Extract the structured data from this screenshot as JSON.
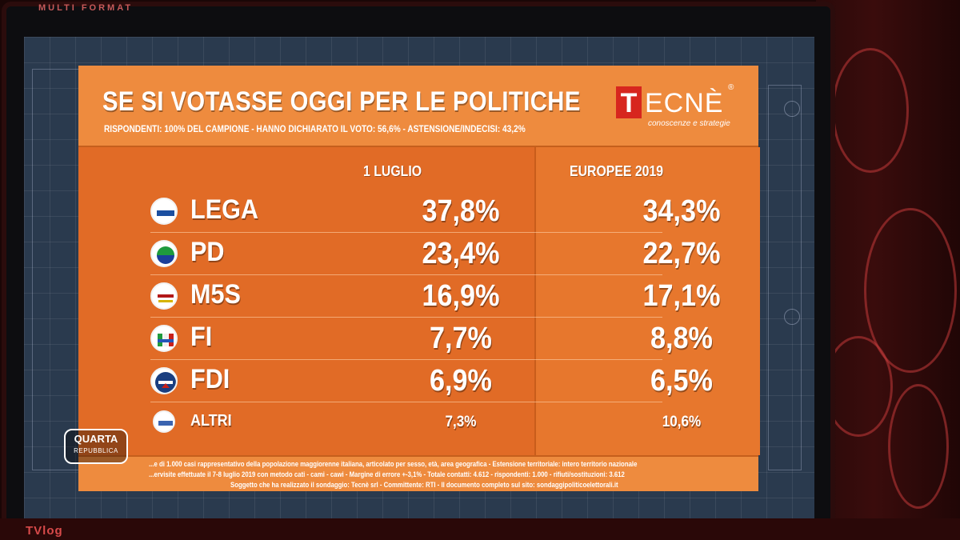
{
  "monitor": {
    "brand_top": "MULTI FORMAT",
    "bottom_logo": "TVlog"
  },
  "panel": {
    "title": "SE SI VOTASSE OGGI PER LE POLITICHE",
    "subtitle": "RISPONDENTI: 100% DEL CAMPIONE - HANNO DICHIARATO IL VOTO: 56,6% - ASTENSIONE/INDECISI: 43,2%",
    "logo": {
      "mark": "T",
      "text": "ECNÈ",
      "reg": "®",
      "tagline": "conoscenze e strategie"
    },
    "columns": [
      "1 LUGLIO",
      "EUROPEE 2019"
    ],
    "rows": [
      {
        "party": "LEGA",
        "icon": "lega-logo-icon",
        "icon_color": "#1b4fa0",
        "col1": "37,8%",
        "col2": "34,3%"
      },
      {
        "party": "PD",
        "icon": "pd-logo-icon",
        "icon_color": "#1f9a3d",
        "col1": "23,4%",
        "col2": "22,7%"
      },
      {
        "party": "M5S",
        "icon": "m5s-logo-icon",
        "icon_color": "#d6b400",
        "col1": "16,9%",
        "col2": "17,1%"
      },
      {
        "party": "FI",
        "icon": "fi-logo-icon",
        "icon_color": "#2356b8",
        "col1": "7,7%",
        "col2": "8,8%"
      },
      {
        "party": "FDI",
        "icon": "fdi-logo-icon",
        "icon_color": "#1a3e80",
        "col1": "6,9%",
        "col2": "6,5%"
      },
      {
        "party": "ALTRI",
        "icon": "altri-logo-icon",
        "icon_color": "#3a64b0",
        "col1": "7,3%",
        "col2": "10,6%"
      }
    ],
    "footer_lines": [
      "...e di 1.000 casi rappresentativo della popolazione maggiorenne italiana, articolato per sesso, età, area geografica - Estensione territoriale: intero territorio nazionale",
      "...ervisite effettuate il 7-8 luglio 2019 con metodo cati - cami - cawi - Margine di errore +-3,1% - Totale contatti: 4.612 - rispondenti: 1.000 - rifiuti/sostituzioni: 3.612",
      "Soggetto che ha realizzato il sondaggio: Tecnè srl - Committente: RTI - Il documento completo sul sito: sondaggipoliticoelettorali.it"
    ],
    "channel_logo": {
      "line1": "QUARTA",
      "line2": "REPUBBLICA"
    }
  }
}
